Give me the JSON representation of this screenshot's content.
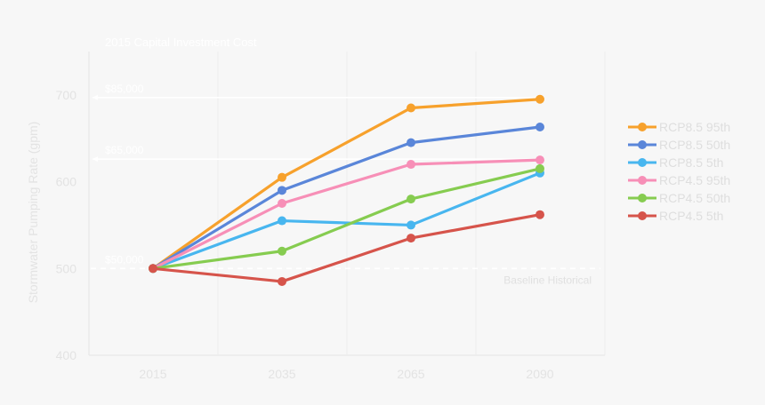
{
  "chart_data": {
    "type": "line",
    "title": "",
    "xlabel": "",
    "ylabel": "Stormwater Pumping Rate (gpm)",
    "categories": [
      "2015",
      "2035",
      "2065",
      "2090"
    ],
    "ylim": [
      400,
      750
    ],
    "yticks": [
      400,
      500,
      600,
      700
    ],
    "grid": true,
    "legend_position": "right",
    "series": [
      {
        "name": "RCP8.5 95th",
        "color": "#f7a12c",
        "values": [
          500,
          605,
          685,
          695
        ]
      },
      {
        "name": "RCP8.5 50th",
        "color": "#5a86d9",
        "values": [
          500,
          590,
          645,
          663
        ]
      },
      {
        "name": "RCP8.5 5th",
        "color": "#48b6ef",
        "values": [
          500,
          555,
          550,
          610
        ]
      },
      {
        "name": "RCP4.5 95th",
        "color": "#f78fb7",
        "values": [
          500,
          575,
          620,
          625
        ]
      },
      {
        "name": "RCP4.5 50th",
        "color": "#86cc50",
        "values": [
          500,
          520,
          580,
          615
        ]
      },
      {
        "name": "RCP4.5 5th",
        "color": "#d6544b",
        "values": [
          500,
          485,
          535,
          562
        ]
      }
    ],
    "annotations": {
      "header": "2015 Capital Investment Cost",
      "levels": [
        {
          "label": "$85,000",
          "value": 697
        },
        {
          "label": "$65,000",
          "value": 626
        },
        {
          "label": "$50,000",
          "value": 500
        }
      ],
      "baseline_label": "Baseline Historical"
    }
  }
}
